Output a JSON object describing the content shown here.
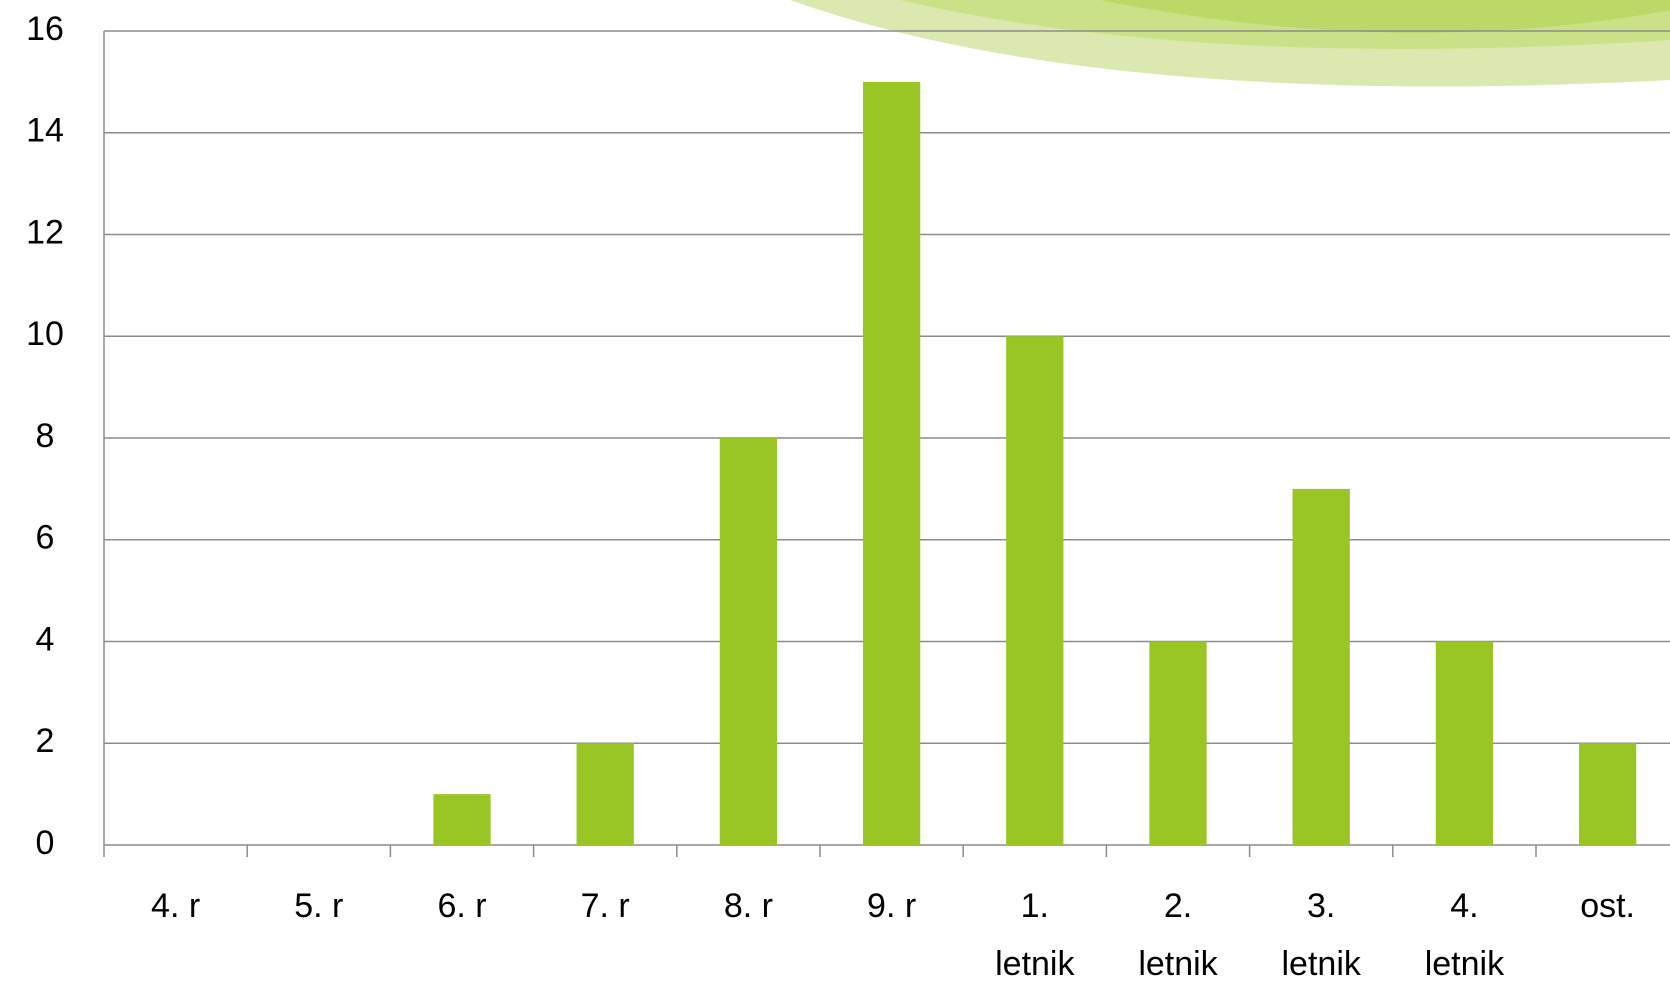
{
  "chart_data": {
    "type": "bar",
    "categories": [
      "4. r",
      "5. r",
      "6. r",
      "7. r",
      "8. r",
      "9. r",
      "1.\nletnik",
      "2.\nletnik",
      "3.\nletnik",
      "4.\nletnik",
      "ost."
    ],
    "values": [
      0,
      0,
      1,
      2,
      8,
      15,
      10,
      4,
      7,
      4,
      2
    ],
    "color": "#9ac625",
    "ylim": [
      0,
      16
    ],
    "yticks": [
      0,
      2,
      4,
      6,
      8,
      10,
      12,
      14,
      16
    ],
    "grid": true
  }
}
